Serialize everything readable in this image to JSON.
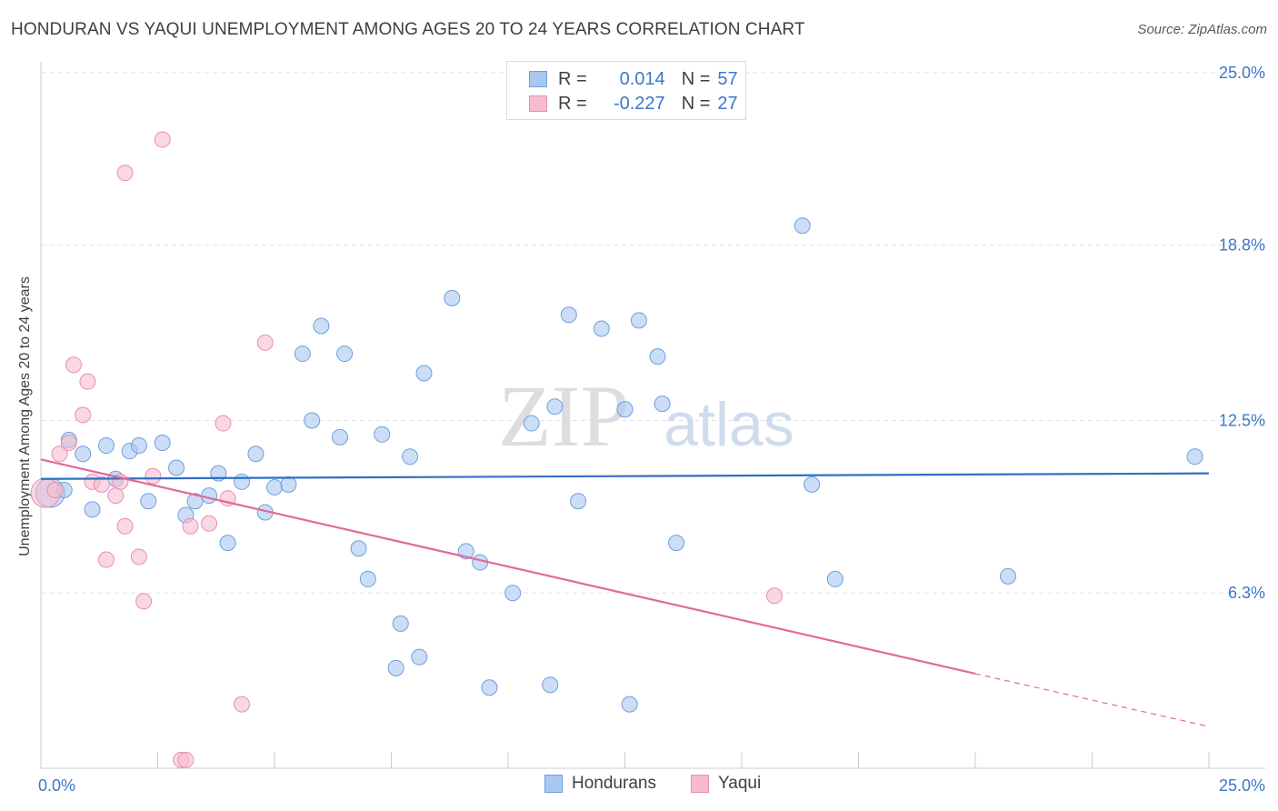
{
  "title": "HONDURAN VS YAQUI UNEMPLOYMENT AMONG AGES 20 TO 24 YEARS CORRELATION CHART",
  "source": "Source: ZipAtlas.com",
  "watermark": {
    "zip": "ZIP",
    "atlas": "atlas"
  },
  "legend_top": [
    {
      "r_label": "R =",
      "r_value": "0.014",
      "n_label": "N =",
      "n_value": "57",
      "color": "#a9c8f0",
      "border": "#6f9fdc"
    },
    {
      "r_label": "R =",
      "r_value": "-0.227",
      "n_label": "N =",
      "n_value": "27",
      "color": "#f5bcd0",
      "border": "#e890ae"
    }
  ],
  "chart_data": {
    "type": "scatter",
    "title": "HONDURAN VS YAQUI UNEMPLOYMENT AMONG AGES 20 TO 24 YEARS CORRELATION CHART",
    "xlabel": "",
    "ylabel": "Unemployment Among Ages 20 to 24 years",
    "xlim": [
      0,
      25
    ],
    "ylim": [
      0,
      25
    ],
    "x_tick_labels": [
      {
        "value": 0,
        "label": "0.0%"
      },
      {
        "value": 25,
        "label": "25.0%"
      }
    ],
    "y_tick_labels": [
      {
        "value": 6.3,
        "label": "6.3%"
      },
      {
        "value": 12.5,
        "label": "12.5%"
      },
      {
        "value": 18.8,
        "label": "18.8%"
      },
      {
        "value": 25.0,
        "label": "25.0%"
      }
    ],
    "grid": true,
    "legend_position": "bottom",
    "series": [
      {
        "name": "Hondurans",
        "color": "#a9c8f0",
        "stroke": "#6f9fdc",
        "trend_color": "#2f6fc4",
        "trend": {
          "x0": 0,
          "y0": 10.4,
          "x1": 25,
          "y1": 10.6
        },
        "points": [
          {
            "x": 0.2,
            "y": 9.9,
            "big": true
          },
          {
            "x": 0.6,
            "y": 11.8
          },
          {
            "x": 0.9,
            "y": 11.3
          },
          {
            "x": 1.1,
            "y": 9.3
          },
          {
            "x": 1.4,
            "y": 11.6
          },
          {
            "x": 1.6,
            "y": 10.4
          },
          {
            "x": 1.9,
            "y": 11.4
          },
          {
            "x": 2.1,
            "y": 11.6
          },
          {
            "x": 2.3,
            "y": 9.6
          },
          {
            "x": 2.6,
            "y": 11.7
          },
          {
            "x": 2.9,
            "y": 10.8
          },
          {
            "x": 3.1,
            "y": 9.1
          },
          {
            "x": 3.3,
            "y": 9.6
          },
          {
            "x": 3.6,
            "y": 9.8
          },
          {
            "x": 3.8,
            "y": 10.6
          },
          {
            "x": 4.0,
            "y": 8.1
          },
          {
            "x": 4.3,
            "y": 10.3
          },
          {
            "x": 4.6,
            "y": 11.3
          },
          {
            "x": 4.8,
            "y": 9.2
          },
          {
            "x": 5.0,
            "y": 10.1
          },
          {
            "x": 5.3,
            "y": 10.2
          },
          {
            "x": 5.6,
            "y": 14.9
          },
          {
            "x": 5.8,
            "y": 12.5
          },
          {
            "x": 6.0,
            "y": 15.9
          },
          {
            "x": 6.4,
            "y": 11.9
          },
          {
            "x": 6.5,
            "y": 14.9
          },
          {
            "x": 6.8,
            "y": 7.9
          },
          {
            "x": 7.0,
            "y": 6.8
          },
          {
            "x": 7.3,
            "y": 12.0
          },
          {
            "x": 7.6,
            "y": 3.6
          },
          {
            "x": 7.7,
            "y": 5.2
          },
          {
            "x": 7.9,
            "y": 11.2
          },
          {
            "x": 8.1,
            "y": 4.0
          },
          {
            "x": 8.2,
            "y": 14.2
          },
          {
            "x": 8.8,
            "y": 16.9
          },
          {
            "x": 9.1,
            "y": 7.8
          },
          {
            "x": 9.4,
            "y": 7.4
          },
          {
            "x": 9.6,
            "y": 2.9
          },
          {
            "x": 10.1,
            "y": 6.3
          },
          {
            "x": 10.5,
            "y": 12.4
          },
          {
            "x": 10.9,
            "y": 3.0
          },
          {
            "x": 11.0,
            "y": 13.0
          },
          {
            "x": 11.3,
            "y": 16.3
          },
          {
            "x": 11.5,
            "y": 9.6
          },
          {
            "x": 12.0,
            "y": 15.8
          },
          {
            "x": 12.5,
            "y": 12.9
          },
          {
            "x": 12.6,
            "y": 2.3
          },
          {
            "x": 12.8,
            "y": 16.1
          },
          {
            "x": 13.2,
            "y": 14.8
          },
          {
            "x": 13.3,
            "y": 13.1
          },
          {
            "x": 13.6,
            "y": 8.1
          },
          {
            "x": 16.3,
            "y": 19.5
          },
          {
            "x": 16.5,
            "y": 10.2
          },
          {
            "x": 17.0,
            "y": 6.8
          },
          {
            "x": 20.7,
            "y": 6.9
          },
          {
            "x": 24.7,
            "y": 11.2
          },
          {
            "x": 0.5,
            "y": 10.0
          }
        ]
      },
      {
        "name": "Yaqui",
        "color": "#f5bcd0",
        "stroke": "#e890ae",
        "trend_color": "#e06a97",
        "trend": {
          "x0": 0,
          "y0": 11.1,
          "x1": 20.0,
          "y1": 3.4,
          "dash_x1": 25,
          "dash_y1": 1.5
        },
        "points": [
          {
            "x": 0.1,
            "y": 9.9,
            "big": true
          },
          {
            "x": 0.3,
            "y": 10.0
          },
          {
            "x": 0.4,
            "y": 11.3
          },
          {
            "x": 0.6,
            "y": 11.7
          },
          {
            "x": 0.7,
            "y": 14.5
          },
          {
            "x": 0.9,
            "y": 12.7
          },
          {
            "x": 1.0,
            "y": 13.9
          },
          {
            "x": 1.1,
            "y": 10.3
          },
          {
            "x": 1.3,
            "y": 10.2
          },
          {
            "x": 1.4,
            "y": 7.5
          },
          {
            "x": 1.6,
            "y": 9.8
          },
          {
            "x": 1.8,
            "y": 8.7
          },
          {
            "x": 1.8,
            "y": 21.4
          },
          {
            "x": 2.1,
            "y": 7.6
          },
          {
            "x": 2.2,
            "y": 6.0
          },
          {
            "x": 2.4,
            "y": 10.5
          },
          {
            "x": 2.6,
            "y": 22.6
          },
          {
            "x": 3.0,
            "y": 0.3
          },
          {
            "x": 3.1,
            "y": 0.3
          },
          {
            "x": 3.2,
            "y": 8.7
          },
          {
            "x": 3.6,
            "y": 8.8
          },
          {
            "x": 3.9,
            "y": 12.4
          },
          {
            "x": 4.0,
            "y": 9.7
          },
          {
            "x": 4.3,
            "y": 2.3
          },
          {
            "x": 4.8,
            "y": 15.3
          },
          {
            "x": 15.7,
            "y": 6.2
          },
          {
            "x": 1.7,
            "y": 10.3
          }
        ]
      }
    ]
  }
}
